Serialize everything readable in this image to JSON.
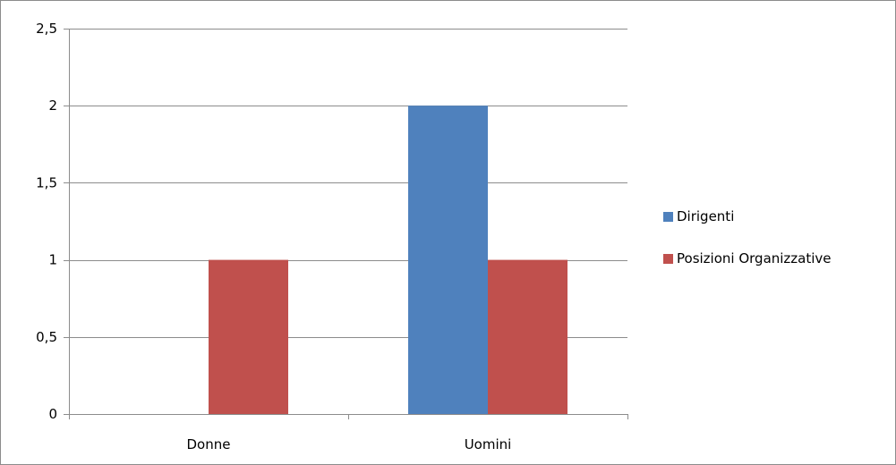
{
  "chart_data": {
    "type": "bar",
    "categories": [
      "Donne",
      "Uomini"
    ],
    "series": [
      {
        "name": "Dirigenti",
        "values": [
          0,
          2
        ],
        "color": "#4f81bd"
      },
      {
        "name": "Posizioni Organizzative",
        "values": [
          1,
          1
        ],
        "color": "#c0504d"
      }
    ],
    "ylim": [
      0,
      2.5
    ],
    "yticks": [
      "0",
      "0,5",
      "1",
      "1,5",
      "2",
      "2,5"
    ],
    "ytick_values": [
      0,
      0.5,
      1,
      1.5,
      2,
      2.5
    ],
    "title": "",
    "xlabel": "",
    "ylabel": "",
    "grid": true,
    "legend_position": "right"
  }
}
